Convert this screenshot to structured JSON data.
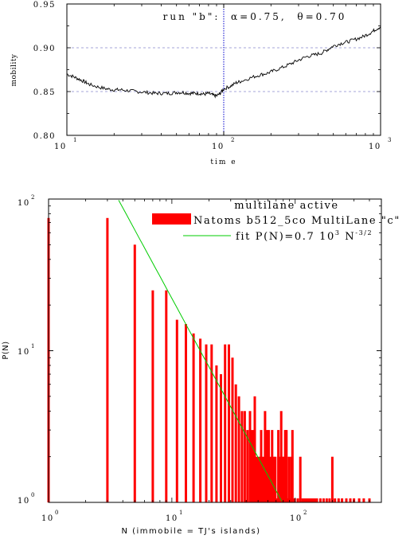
{
  "chart_data": [
    {
      "type": "line",
      "annotation": "run \"b\":  α=0.75,  θ=0.70",
      "xlabel": "tim e",
      "ylabel": "mobility",
      "xscale": "log",
      "xlim": [
        10,
        1000
      ],
      "ylim": [
        0.8,
        0.95
      ],
      "x_tick_labels": [
        {
          "base": "10",
          "exp": "1"
        },
        {
          "base": "10",
          "exp": "2"
        },
        {
          "base": "10",
          "exp": "3"
        }
      ],
      "y_tick_labels": [
        "0.80",
        "0.85",
        "0.90",
        "0.95"
      ],
      "grid": "dashed horizontal at 0.85 and 0.90",
      "vertical_marker_x": 100,
      "series": [
        {
          "color": "#000000",
          "points": [
            [
              10,
              0.87
            ],
            [
              11,
              0.867
            ],
            [
              12,
              0.864
            ],
            [
              13,
              0.861
            ],
            [
              14,
              0.858
            ],
            [
              16,
              0.855
            ],
            [
              18,
              0.853
            ],
            [
              20,
              0.852
            ],
            [
              22,
              0.852
            ],
            [
              25,
              0.851
            ],
            [
              28,
              0.85
            ],
            [
              32,
              0.849
            ],
            [
              36,
              0.848
            ],
            [
              40,
              0.848
            ],
            [
              45,
              0.848
            ],
            [
              50,
              0.849
            ],
            [
              55,
              0.849
            ],
            [
              60,
              0.848
            ],
            [
              65,
              0.848
            ],
            [
              70,
              0.848
            ],
            [
              75,
              0.847
            ],
            [
              80,
              0.848
            ],
            [
              85,
              0.846
            ],
            [
              90,
              0.845
            ],
            [
              95,
              0.848
            ],
            [
              100,
              0.853
            ],
            [
              110,
              0.856
            ],
            [
              120,
              0.86
            ],
            [
              130,
              0.862
            ],
            [
              150,
              0.866
            ],
            [
              170,
              0.869
            ],
            [
              190,
              0.871
            ],
            [
              210,
              0.874
            ],
            [
              240,
              0.878
            ],
            [
              270,
              0.882
            ],
            [
              300,
              0.886
            ],
            [
              340,
              0.89
            ],
            [
              380,
              0.892
            ],
            [
              420,
              0.894
            ],
            [
              460,
              0.898
            ],
            [
              500,
              0.902
            ],
            [
              560,
              0.905
            ],
            [
              620,
              0.907
            ],
            [
              700,
              0.91
            ],
            [
              780,
              0.913
            ],
            [
              860,
              0.917
            ],
            [
              930,
              0.921
            ],
            [
              1000,
              0.924
            ]
          ]
        }
      ]
    },
    {
      "type": "bar",
      "title": "multilane active",
      "xlabel": "N (immobile = TJ's islands)",
      "ylabel": "P(N)",
      "xscale": "log",
      "yscale": "log",
      "xlim": [
        1,
        500
      ],
      "ylim": [
        1,
        100
      ],
      "x_tick_labels": [
        {
          "base": "10",
          "exp": "0"
        },
        {
          "base": "10",
          "exp": "1"
        },
        {
          "base": "10",
          "exp": "2"
        }
      ],
      "y_tick_labels": [
        {
          "base": "10",
          "exp": "0"
        },
        {
          "base": "10",
          "exp": "1"
        },
        {
          "base": "10",
          "exp": "2"
        }
      ],
      "legend_position": "top-right",
      "series": [
        {
          "name": "Natoms b512_5co MultiLane \"c\"",
          "color": "#ff0000",
          "x": [
            1,
            3,
            5,
            7,
            9,
            11,
            13,
            15,
            17,
            19,
            21,
            23,
            25,
            27,
            29,
            31,
            33,
            35,
            37,
            39,
            41,
            43,
            45,
            47,
            49,
            51,
            53,
            55,
            57,
            59,
            61,
            63,
            65,
            67,
            69,
            71,
            73,
            75,
            77,
            79,
            81,
            83,
            85,
            87,
            89,
            91,
            93,
            95,
            97,
            99,
            105,
            110,
            115,
            120,
            125,
            130,
            135,
            140,
            145,
            150,
            160,
            170,
            180,
            190,
            200,
            210,
            225,
            240,
            260,
            280,
            300,
            330,
            360,
            400
          ],
          "values": [
            75,
            75,
            50,
            25,
            25,
            16,
            15,
            13,
            12,
            11,
            11,
            8,
            7,
            11,
            11,
            9,
            6,
            5,
            4,
            4,
            3,
            4,
            3,
            5,
            2,
            2,
            3,
            2,
            4,
            3,
            3,
            2,
            3,
            2,
            2,
            1,
            3,
            2,
            4,
            2,
            2,
            3,
            3,
            1,
            2,
            1,
            2,
            3,
            1,
            1,
            1,
            2,
            1,
            1,
            1,
            1,
            1,
            1,
            1,
            1,
            1,
            1,
            1,
            1,
            2,
            1,
            1,
            1,
            1,
            1,
            1,
            1,
            1,
            1
          ]
        },
        {
          "name": "fit P(N)=0.7 10³ N⁻³ᐟ²",
          "label_parts": {
            "main": "fit P(N)=0.7 10",
            "exp1": "3",
            "mid": " N",
            "exp2": "-3/2"
          },
          "color": "#00cc00",
          "type": "line",
          "fit": {
            "coefficient": 700,
            "exponent": -1.5
          },
          "x_range": [
            3.7,
            78
          ]
        }
      ]
    }
  ]
}
